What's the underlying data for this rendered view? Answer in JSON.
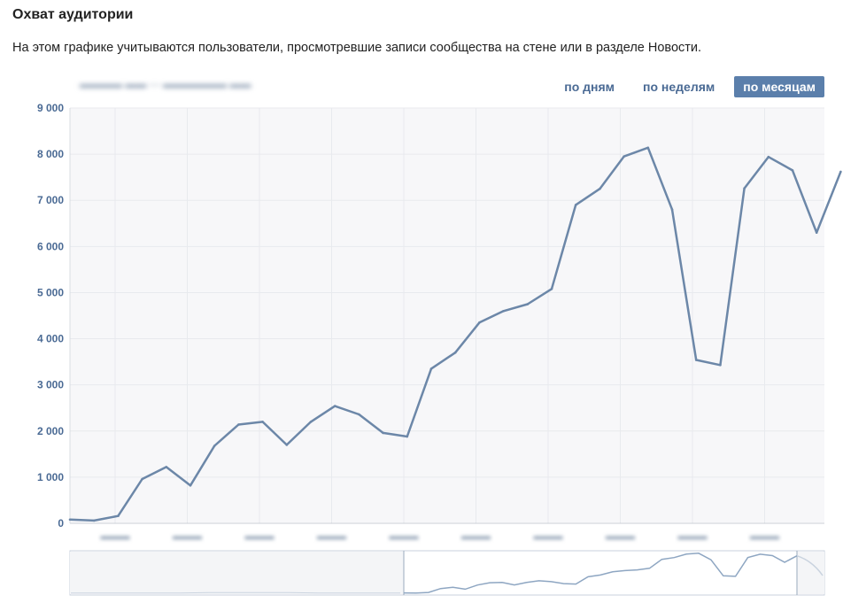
{
  "header": {
    "title": "Охват аудитории",
    "description": "На этом графике учитываются пользователи, просмотревшие записи сообщества на стене или в разделе Новости."
  },
  "tabs": [
    {
      "label": "по дням",
      "active": false
    },
    {
      "label": "по неделям",
      "active": false
    },
    {
      "label": "по месяцам",
      "active": true
    }
  ],
  "colors": {
    "line": "#6c87a8",
    "accent": "#5b7fab",
    "plot_bg": "#f7f7f9",
    "grid": "#e8eaee"
  },
  "chart_data": {
    "type": "line",
    "ylim": [
      0,
      9000
    ],
    "yticks": [
      "0",
      "1 000",
      "2 000",
      "3 000",
      "4 000",
      "5 000",
      "6 000",
      "7 000",
      "8 000",
      "9 000"
    ],
    "grid": true,
    "series": [
      {
        "values": [
          80,
          60,
          160,
          960,
          1220,
          820,
          1680,
          2140,
          2200,
          1700,
          2200,
          2540,
          2360,
          1960,
          1880,
          3350,
          3700,
          4350,
          4600,
          4750,
          5080,
          6900,
          7250,
          7950,
          8140,
          6800,
          3540,
          3430,
          7260,
          7940,
          7650,
          6300,
          7620
        ]
      }
    ]
  }
}
